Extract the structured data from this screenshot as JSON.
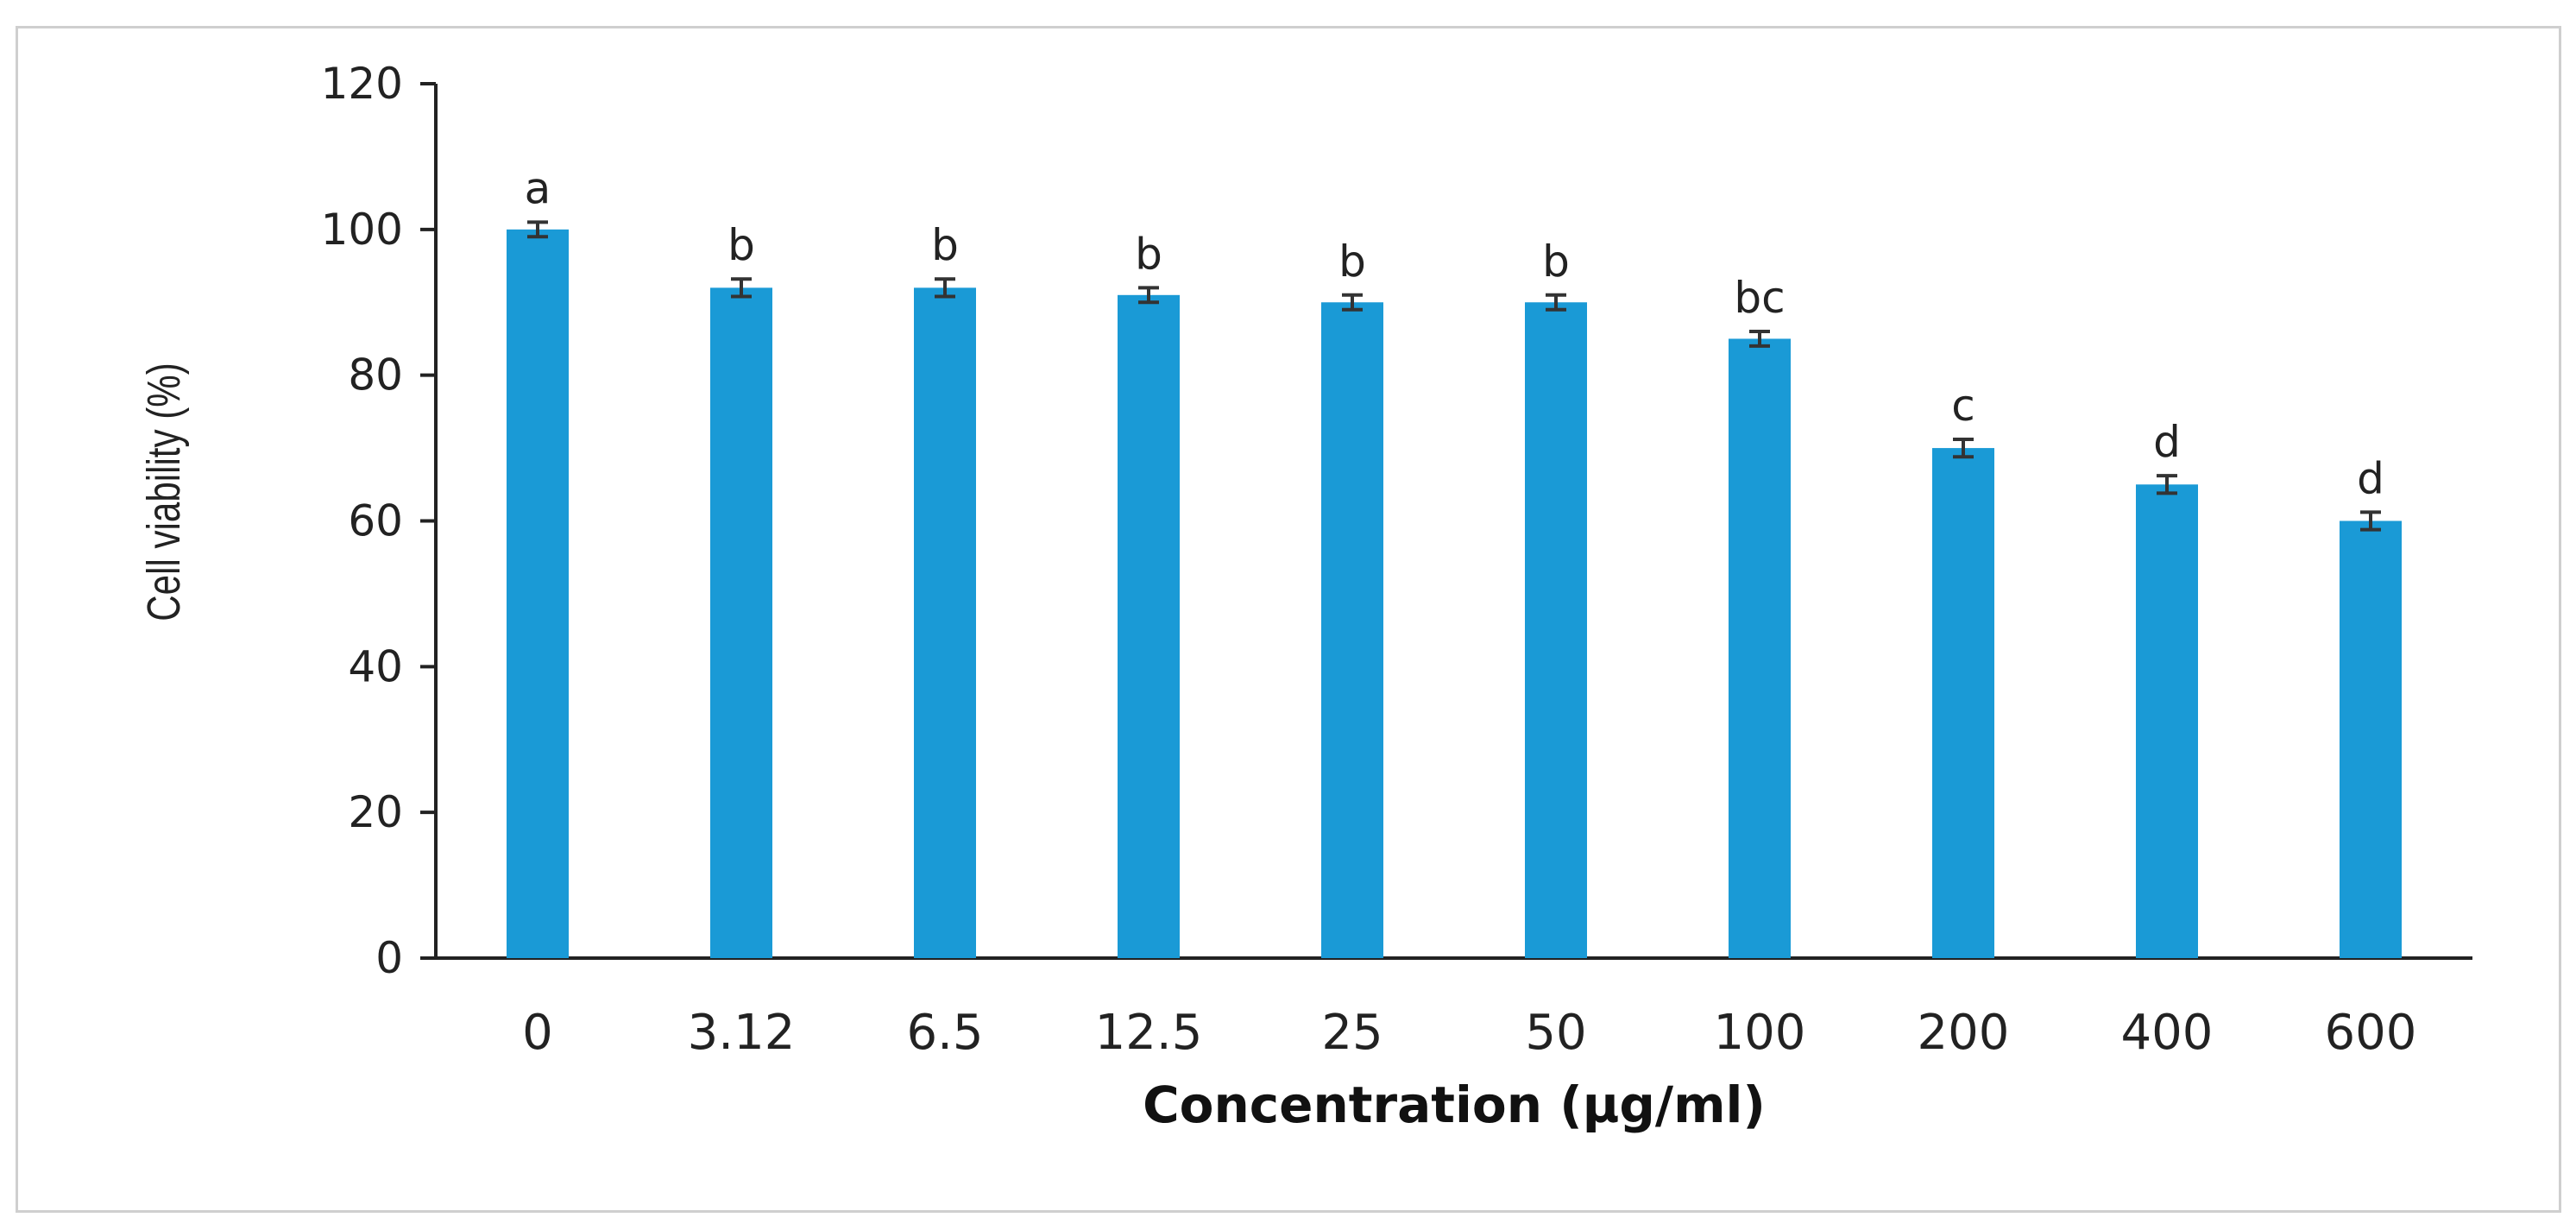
{
  "chart_data": {
    "type": "bar",
    "xlabel": "Concentration (µg/ml)",
    "ylabel": "Cell viability (%)",
    "categories": [
      "0",
      "3.12",
      "6.5",
      "12.5",
      "25",
      "50",
      "100",
      "200",
      "400",
      "600"
    ],
    "values": [
      100,
      92,
      92,
      91,
      90,
      90,
      85,
      70,
      65,
      60
    ],
    "errors": [
      1,
      1.2,
      1.2,
      1,
      1,
      1,
      1,
      1.2,
      1.2,
      1.2
    ],
    "significance_letters": [
      "a",
      "b",
      "b",
      "b",
      "b",
      "b",
      "bc",
      "c",
      "d",
      "d"
    ],
    "ylim": [
      0,
      120
    ],
    "yticks": [
      0,
      20,
      40,
      60,
      80,
      100,
      120
    ],
    "grid": false,
    "bar_color": "#1a9ad6",
    "error_color": "#333333"
  }
}
